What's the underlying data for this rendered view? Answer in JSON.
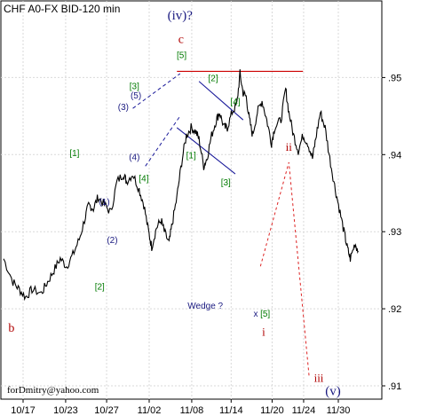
{
  "chart_data": {
    "type": "line",
    "title": "CHF A0-FX BID-120 min",
    "footer": "forDmitry@yahoo.com",
    "ylim": [
      0.908,
      0.956
    ],
    "y_ticks": [
      ".95",
      ".94",
      ".93",
      ".92",
      ".91"
    ],
    "y_tick_values": [
      0.95,
      0.94,
      0.93,
      0.92,
      0.91
    ],
    "x_ticks": [
      "10/17",
      "10/23",
      "10/27",
      "11/02",
      "11/08",
      "11/14",
      "11/20",
      "11/24",
      "11/30"
    ],
    "grid": true,
    "price_path": [
      [
        0,
        0.9265
      ],
      [
        3,
        0.9235
      ],
      [
        5,
        0.9225
      ],
      [
        7,
        0.9215
      ],
      [
        9,
        0.9225
      ],
      [
        12,
        0.922
      ],
      [
        14,
        0.9235
      ],
      [
        16,
        0.925
      ],
      [
        18,
        0.9265
      ],
      [
        20,
        0.9255
      ],
      [
        22,
        0.927
      ],
      [
        24,
        0.929
      ],
      [
        26,
        0.932
      ],
      [
        27,
        0.9335
      ],
      [
        28.5,
        0.933
      ],
      [
        30,
        0.9345
      ],
      [
        32,
        0.9335
      ],
      [
        34,
        0.9325
      ],
      [
        36,
        0.9365
      ],
      [
        38,
        0.9375
      ],
      [
        39,
        0.9365
      ],
      [
        41,
        0.9375
      ],
      [
        43,
        0.9355
      ],
      [
        44.5,
        0.9335
      ],
      [
        46,
        0.93
      ],
      [
        47,
        0.928
      ],
      [
        48.5,
        0.9305
      ],
      [
        50,
        0.9315
      ],
      [
        51,
        0.93
      ],
      [
        52.5,
        0.9285
      ],
      [
        53.5,
        0.931
      ],
      [
        55,
        0.9345
      ],
      [
        56.5,
        0.939
      ],
      [
        58,
        0.9425
      ],
      [
        59.5,
        0.9435
      ],
      [
        61,
        0.943
      ],
      [
        62,
        0.942
      ],
      [
        63.5,
        0.9385
      ],
      [
        64.5,
        0.9395
      ],
      [
        66,
        0.9425
      ],
      [
        67.5,
        0.9445
      ],
      [
        68.5,
        0.9455
      ],
      [
        70,
        0.9435
      ],
      [
        71,
        0.9435
      ],
      [
        72.5,
        0.9455
      ],
      [
        74,
        0.9465
      ],
      [
        75,
        0.9505
      ],
      [
        76,
        0.948
      ],
      [
        77,
        0.9475
      ],
      [
        78,
        0.9445
      ],
      [
        79,
        0.9425
      ],
      [
        80.5,
        0.9455
      ],
      [
        82,
        0.947
      ],
      [
        83.5,
        0.9445
      ],
      [
        85,
        0.9415
      ],
      [
        86,
        0.9435
      ],
      [
        88,
        0.9445
      ],
      [
        89.5,
        0.9485
      ],
      [
        90.5,
        0.9455
      ],
      [
        92,
        0.9425
      ],
      [
        93.5,
        0.9405
      ],
      [
        95,
        0.9425
      ],
      [
        96.5,
        0.9415
      ],
      [
        98,
        0.9395
      ],
      [
        99,
        0.942
      ],
      [
        100.5,
        0.9455
      ],
      [
        102,
        0.9435
      ],
      [
        103.5,
        0.9395
      ],
      [
        105,
        0.936
      ],
      [
        106.5,
        0.933
      ],
      [
        108,
        0.93
      ],
      [
        109,
        0.928
      ],
      [
        110,
        0.9265
      ],
      [
        111.5,
        0.9285
      ],
      [
        112.5,
        0.9275
      ]
    ],
    "x_span": [
      0,
      140
    ],
    "x_tick_positions": [
      0,
      13.5,
      26.5,
      40,
      53.5,
      66,
      79,
      89,
      100
    ],
    "wave_labels_green": [
      {
        "text": "[1]",
        "x": 22.5,
        "y": 0.9398
      },
      {
        "text": "[2]",
        "x": 30.5,
        "y": 0.9225
      },
      {
        "text": "[3]",
        "x": 41.5,
        "y": 0.9485
      },
      {
        "text": "[4]",
        "x": 44.5,
        "y": 0.9365
      },
      {
        "text": "[5]",
        "x": 56.5,
        "y": 0.9525
      },
      {
        "text": "[1]",
        "x": 59.5,
        "y": 0.9395
      },
      {
        "text": "[2]",
        "x": 66.5,
        "y": 0.9495
      },
      {
        "text": "[3]",
        "x": 70.5,
        "y": 0.936
      },
      {
        "text": "[4]",
        "x": 73.5,
        "y": 0.9465
      },
      {
        "text": "[5]",
        "x": 83,
        "y": 0.919
      }
    ],
    "wave_labels_navy": [
      {
        "text": "(1)",
        "x": 32,
        "y": 0.9335
      },
      {
        "text": "(2)",
        "x": 34.5,
        "y": 0.9285
      },
      {
        "text": "(3)",
        "x": 38,
        "y": 0.9458
      },
      {
        "text": "(4)",
        "x": 41.5,
        "y": 0.9393
      },
      {
        "text": "(5)",
        "x": 42,
        "y": 0.9473
      },
      {
        "text": "x",
        "x": 80,
        "y": 0.919
      }
    ],
    "wave_labels_red": [
      {
        "text": "b",
        "x": 2.5,
        "y": 0.917,
        "size": 14
      },
      {
        "text": "c",
        "x": 56.3,
        "y": 0.9545,
        "size": 14
      },
      {
        "text": "i",
        "x": 82.5,
        "y": 0.9165,
        "size": 13
      },
      {
        "text": "ii",
        "x": 90.5,
        "y": 0.9405,
        "size": 13
      },
      {
        "text": "iii",
        "x": 100,
        "y": 0.9105,
        "size": 13
      }
    ],
    "wave_labels_navy_big": [
      {
        "text": "(iv)?",
        "x": 56,
        "y": 0.9575,
        "size": 15
      },
      {
        "text": "(v)",
        "x": 104.5,
        "y": 0.9088,
        "size": 15
      }
    ],
    "annotation": "Wedge ?",
    "annotation_pos": [
      64,
      0.92
    ],
    "horizontal_line": {
      "y": 0.9508,
      "x0": 55,
      "x1": 95
    },
    "channel_wedge": [
      {
        "x0": 62,
        "y0": 0.9495,
        "x1": 76,
        "y1": 0.9445
      },
      {
        "x0": 55,
        "y0": 0.9435,
        "x1": 73.5,
        "y1": 0.9375
      }
    ],
    "channel_left": [
      {
        "x0": 41,
        "y0": 0.946,
        "x1": 56,
        "y1": 0.9505
      },
      {
        "x0": 45,
        "y0": 0.9385,
        "x1": 56,
        "y1": 0.945
      }
    ],
    "projection": [
      [
        81.5,
        0.9255
      ],
      [
        90.5,
        0.939
      ],
      [
        97,
        0.911
      ]
    ]
  }
}
